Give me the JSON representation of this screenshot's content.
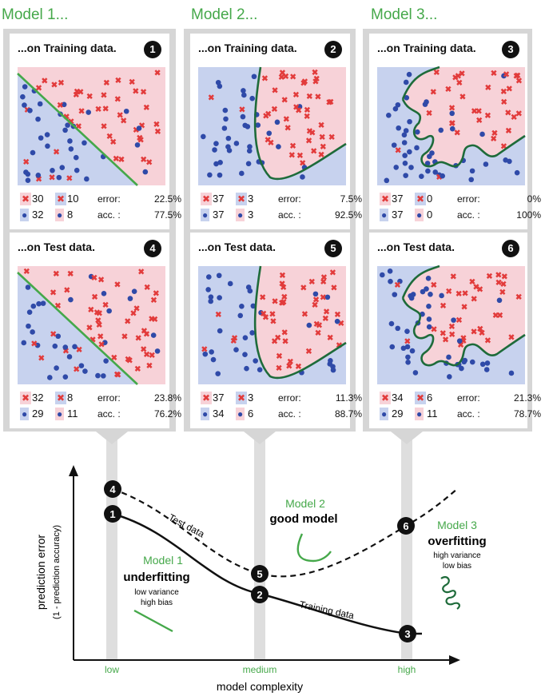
{
  "models": [
    {
      "title": "Model 1..."
    },
    {
      "title": "Model 2..."
    },
    {
      "title": "Model 3..."
    }
  ],
  "panels": [
    {
      "title": "...on Training data.",
      "badge": "1",
      "model": 1,
      "kind": "train",
      "counts": {
        "red_red": "30",
        "red_blue": "10",
        "blue_blue": "32",
        "blue_red": "8"
      },
      "error_label": "error:",
      "error": "22.5%",
      "acc_label": "acc. :",
      "acc": "77.5%"
    },
    {
      "title": "...on Training data.",
      "badge": "2",
      "model": 2,
      "kind": "train",
      "counts": {
        "red_red": "37",
        "red_blue": "3",
        "blue_blue": "37",
        "blue_red": "3"
      },
      "error_label": "error:",
      "error": "7.5%",
      "acc_label": "acc. :",
      "acc": "92.5%"
    },
    {
      "title": "...on Training data.",
      "badge": "3",
      "model": 3,
      "kind": "train",
      "counts": {
        "red_red": "37",
        "red_blue": "0",
        "blue_blue": "37",
        "blue_red": "0"
      },
      "error_label": "error:",
      "error": "0%",
      "acc_label": "acc. :",
      "acc": "100%"
    },
    {
      "title": "...on Test data.",
      "badge": "4",
      "model": 1,
      "kind": "test",
      "counts": {
        "red_red": "32",
        "red_blue": "8",
        "blue_blue": "29",
        "blue_red": "11"
      },
      "error_label": "error:",
      "error": "23.8%",
      "acc_label": "acc. :",
      "acc": "76.2%"
    },
    {
      "title": "...on Test data.",
      "badge": "5",
      "model": 2,
      "kind": "test",
      "counts": {
        "red_red": "37",
        "red_blue": "3",
        "blue_blue": "34",
        "blue_red": "6"
      },
      "error_label": "error:",
      "error": "11.3%",
      "acc_label": "acc. :",
      "acc": "88.7%"
    },
    {
      "title": "...on Test data.",
      "badge": "6",
      "model": 3,
      "kind": "test",
      "counts": {
        "red_red": "34",
        "red_blue": "6",
        "blue_blue": "29",
        "blue_red": "11"
      },
      "error_label": "error:",
      "error": "21.3%",
      "acc_label": "acc. :",
      "acc": "78.7%"
    }
  ],
  "graph": {
    "ylabel": "prediction error",
    "ylabel_sub": "(1 - prediction accuracy)",
    "xlabel": "model complexity",
    "ticks": [
      "low",
      "medium",
      "high"
    ],
    "test_curve_label": "Test data",
    "train_curve_label": "Training data",
    "model1": {
      "name": "Model 1",
      "verdict": "underfitting",
      "line1": "low variance",
      "line2": "high bias"
    },
    "model2": {
      "name": "Model 2",
      "verdict": "good model"
    },
    "model3": {
      "name": "Model 3",
      "verdict": "overfitting",
      "line1": "high variance",
      "line2": "low bias"
    },
    "markers": {
      "m1": "1",
      "m2": "2",
      "m3": "3",
      "m4": "4",
      "m5": "5",
      "m6": "6"
    }
  },
  "colors": {
    "green": "#45a84a",
    "dark_green": "#1e6b3a",
    "red_region": "#f7d2d8",
    "blue_region": "#c7d2ee",
    "red_marker": "#e23b3b",
    "blue_marker": "#2f4aa8",
    "frame": "#d6d6d6"
  }
}
